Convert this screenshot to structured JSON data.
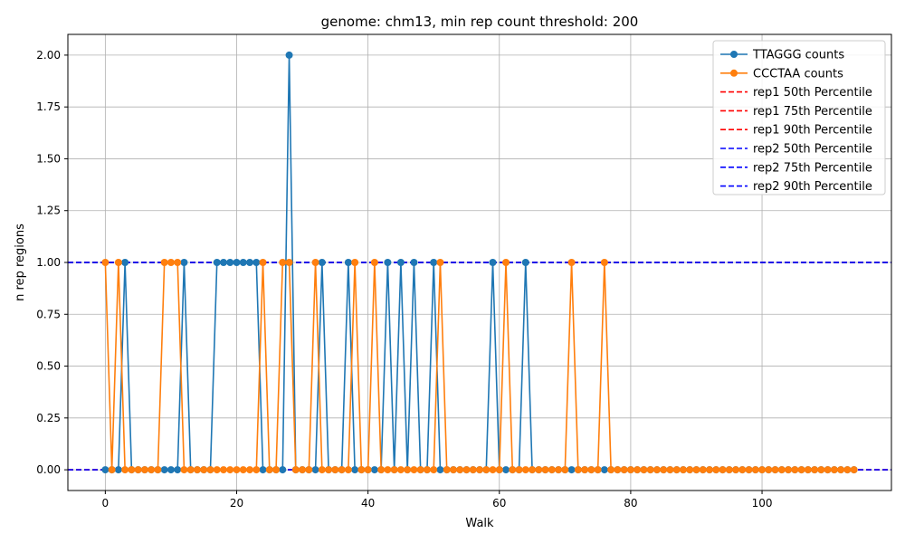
{
  "chart_data": {
    "type": "line",
    "title": "genome: chm13, min rep count threshold: 200",
    "xlabel": "Walk",
    "ylabel": "n rep regions",
    "xlim": [
      -5.7,
      119.7
    ],
    "ylim": [
      -0.1,
      2.1
    ],
    "xticks": [
      0,
      20,
      40,
      60,
      80,
      100
    ],
    "yticks": [
      0.0,
      0.25,
      0.5,
      0.75,
      1.0,
      1.25,
      1.5,
      1.75,
      2.0
    ],
    "xtick_labels": [
      "0",
      "20",
      "40",
      "60",
      "80",
      "100"
    ],
    "ytick_labels": [
      "0.00",
      "0.25",
      "0.50",
      "0.75",
      "1.00",
      "1.25",
      "1.50",
      "1.75",
      "2.00"
    ],
    "grid": true,
    "legend_position": "top-right",
    "x": [
      0,
      1,
      2,
      3,
      4,
      5,
      6,
      7,
      8,
      9,
      10,
      11,
      12,
      13,
      14,
      15,
      16,
      17,
      18,
      19,
      20,
      21,
      22,
      23,
      24,
      25,
      26,
      27,
      28,
      29,
      30,
      31,
      32,
      33,
      34,
      35,
      36,
      37,
      38,
      39,
      40,
      41,
      42,
      43,
      44,
      45,
      46,
      47,
      48,
      49,
      50,
      51,
      52,
      53,
      54,
      55,
      56,
      57,
      58,
      59,
      60,
      61,
      62,
      63,
      64,
      65,
      66,
      67,
      68,
      69,
      70,
      71,
      72,
      73,
      74,
      75,
      76,
      77,
      78,
      79,
      80,
      81,
      82,
      83,
      84,
      85,
      86,
      87,
      88,
      89,
      90,
      91,
      92,
      93,
      94,
      95,
      96,
      97,
      98,
      99,
      100,
      101,
      102,
      103,
      104,
      105,
      106,
      107,
      108,
      109,
      110,
      111,
      112,
      113,
      114
    ],
    "series": [
      {
        "name": "TTAGGG counts",
        "color": "#1f77b4",
        "marker": "circle",
        "values": [
          0,
          0,
          0,
          1,
          0,
          0,
          0,
          0,
          0,
          0,
          0,
          0,
          1,
          0,
          0,
          0,
          0,
          1,
          1,
          1,
          1,
          1,
          1,
          1,
          0,
          0,
          0,
          0,
          2,
          0,
          0,
          0,
          0,
          1,
          0,
          0,
          0,
          1,
          0,
          0,
          0,
          0,
          0,
          1,
          0,
          1,
          0,
          1,
          0,
          0,
          1,
          0,
          0,
          0,
          0,
          0,
          0,
          0,
          0,
          1,
          0,
          0,
          0,
          0,
          1,
          0,
          0,
          0,
          0,
          0,
          0,
          0,
          0,
          0,
          0,
          0,
          0,
          0,
          0,
          0,
          0,
          0,
          0,
          0,
          0,
          0,
          0,
          0,
          0,
          0,
          0,
          0,
          0,
          0,
          0,
          0,
          0,
          0,
          0,
          0,
          0,
          0,
          0,
          0,
          0,
          0,
          0,
          0,
          0,
          0,
          0,
          0,
          0,
          0,
          0
        ]
      },
      {
        "name": "CCCTAA counts",
        "color": "#ff7f0e",
        "marker": "circle",
        "values": [
          1,
          0,
          1,
          0,
          0,
          0,
          0,
          0,
          0,
          1,
          1,
          1,
          0,
          0,
          0,
          0,
          0,
          0,
          0,
          0,
          0,
          0,
          0,
          0,
          1,
          0,
          0,
          1,
          1,
          0,
          0,
          0,
          1,
          0,
          0,
          0,
          0,
          0,
          1,
          0,
          0,
          1,
          0,
          0,
          0,
          0,
          0,
          0,
          0,
          0,
          0,
          1,
          0,
          0,
          0,
          0,
          0,
          0,
          0,
          0,
          0,
          1,
          0,
          0,
          0,
          0,
          0,
          0,
          0,
          0,
          0,
          1,
          0,
          0,
          0,
          0,
          1,
          0,
          0,
          0,
          0,
          0,
          0,
          0,
          0,
          0,
          0,
          0,
          0,
          0,
          0,
          0,
          0,
          0,
          0,
          0,
          0,
          0,
          0,
          0,
          0,
          0,
          0,
          0,
          0,
          0,
          0,
          0,
          0,
          0,
          0,
          0,
          0,
          0,
          0
        ]
      }
    ],
    "hlines": [
      {
        "name": "rep1 50th Percentile",
        "value": 0,
        "color": "#ff0000",
        "style": "dashed"
      },
      {
        "name": "rep1 75th Percentile",
        "value": 1,
        "color": "#ff0000",
        "style": "dashed"
      },
      {
        "name": "rep1 90th Percentile",
        "value": 1,
        "color": "#ff0000",
        "style": "dashed"
      },
      {
        "name": "rep2 50th Percentile",
        "value": 0,
        "color": "#0000ff",
        "style": "dashed"
      },
      {
        "name": "rep2 75th Percentile",
        "value": 1,
        "color": "#0000ff",
        "style": "dashed"
      },
      {
        "name": "rep2 90th Percentile",
        "value": 1,
        "color": "#0000ff",
        "style": "dashed"
      }
    ]
  }
}
